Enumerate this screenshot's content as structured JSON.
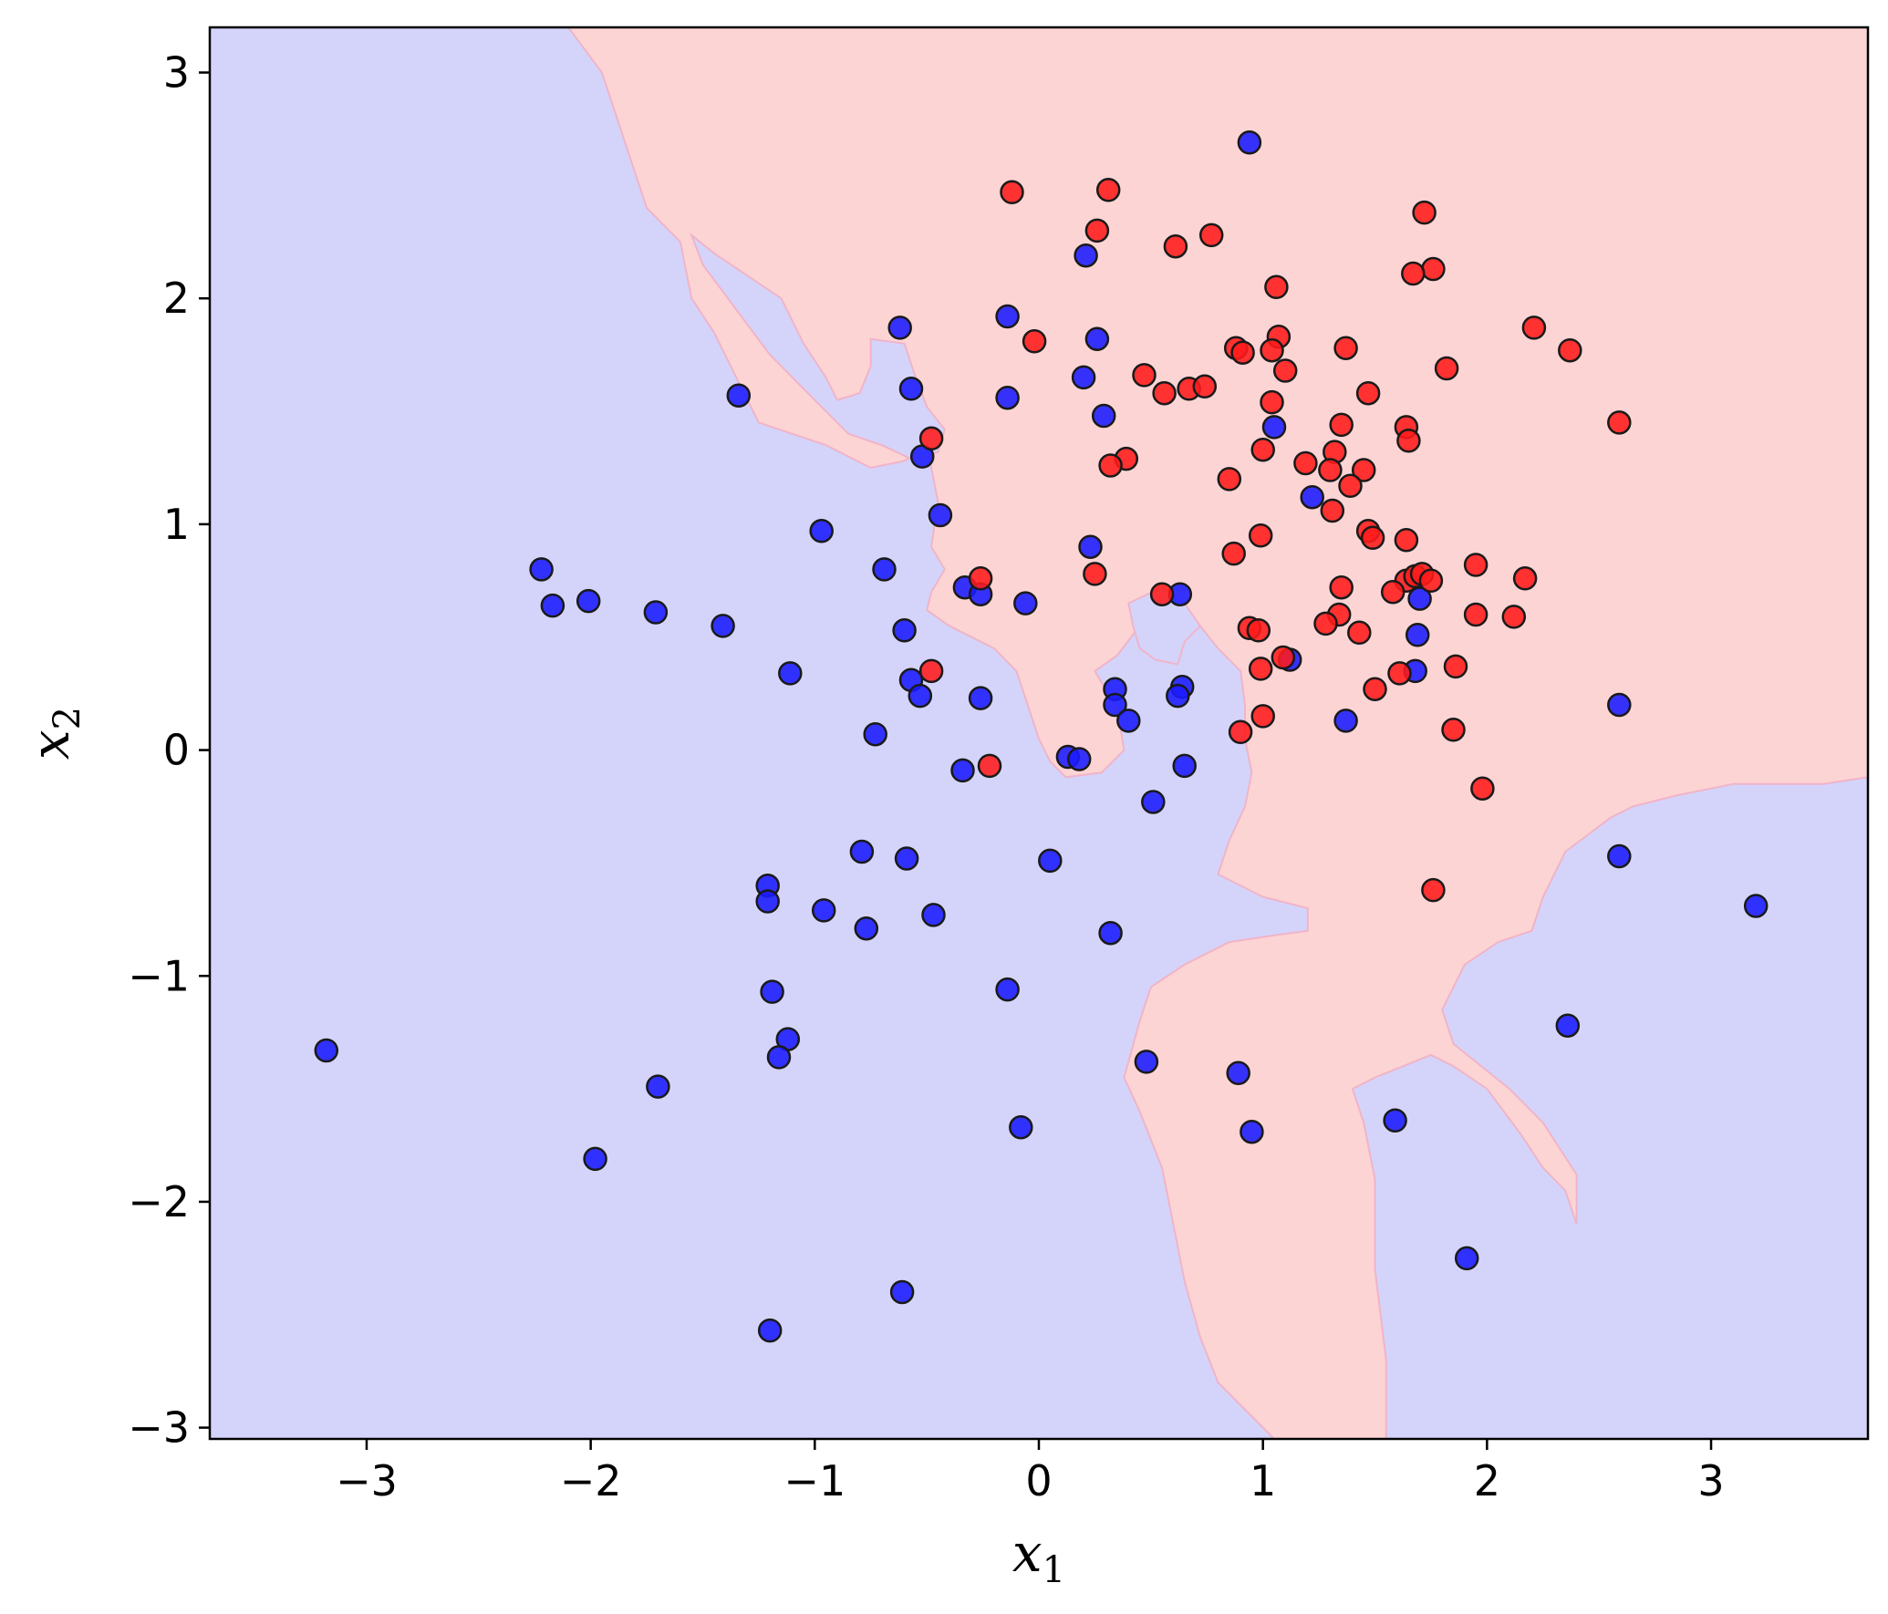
{
  "chart_data": {
    "type": "scatter",
    "title": "",
    "xlabel": {
      "main": "x",
      "sub": "1"
    },
    "ylabel": {
      "main": "x",
      "sub": "2"
    },
    "xlim": [
      -3.7,
      3.7
    ],
    "ylim": [
      -3.05,
      3.2
    ],
    "xticks": [
      -3,
      -2,
      -1,
      0,
      1,
      2,
      3
    ],
    "yticks": [
      -3,
      -2,
      -1,
      0,
      1,
      2,
      3
    ],
    "xtick_labels": [
      "−3",
      "−2",
      "−1",
      "0",
      "1",
      "2",
      "3"
    ],
    "ytick_labels": [
      "−3",
      "−2",
      "−1",
      "0",
      "1",
      "2",
      "3"
    ],
    "grid": false,
    "legend": "none",
    "colors": {
      "region_blue": "#d4d4fb",
      "region_red": "#fdd4d4",
      "region_edge": "#f0b4c8",
      "point_blue": "#1a1aff",
      "point_red": "#ff1a1a",
      "point_edge": "#1a1a1a"
    },
    "decision_regions": {
      "background": "blue",
      "red_regions": [
        [
          [
            -2.1,
            3.2
          ],
          [
            -1.95,
            3.0
          ],
          [
            -1.85,
            2.7
          ],
          [
            -1.75,
            2.4
          ],
          [
            -1.6,
            2.25
          ],
          [
            -1.55,
            2.0
          ],
          [
            -1.45,
            1.85
          ],
          [
            -1.35,
            1.65
          ],
          [
            -1.3,
            1.55
          ],
          [
            -1.25,
            1.45
          ],
          [
            -1.1,
            1.4
          ],
          [
            -0.95,
            1.35
          ],
          [
            -0.75,
            1.25
          ],
          [
            -0.6,
            1.28
          ],
          [
            -0.5,
            1.35
          ],
          [
            -0.45,
            1.1
          ],
          [
            -0.48,
            0.9
          ],
          [
            -0.42,
            0.8
          ],
          [
            -0.48,
            0.7
          ],
          [
            -0.5,
            0.62
          ],
          [
            -0.4,
            0.55
          ],
          [
            -0.3,
            0.5
          ],
          [
            -0.2,
            0.45
          ],
          [
            -0.1,
            0.35
          ],
          [
            -0.05,
            0.2
          ],
          [
            0.0,
            0.05
          ],
          [
            0.05,
            -0.05
          ],
          [
            0.12,
            -0.12
          ],
          [
            0.28,
            -0.1
          ],
          [
            0.38,
            0.0
          ],
          [
            0.35,
            0.18
          ],
          [
            0.25,
            0.35
          ],
          [
            0.35,
            0.42
          ],
          [
            0.45,
            0.55
          ],
          [
            0.55,
            0.68
          ],
          [
            0.65,
            0.62
          ],
          [
            0.72,
            0.55
          ],
          [
            0.8,
            0.45
          ],
          [
            0.9,
            0.35
          ],
          [
            0.92,
            0.2
          ],
          [
            0.92,
            0.05
          ],
          [
            0.95,
            -0.1
          ],
          [
            0.92,
            -0.25
          ],
          [
            0.85,
            -0.4
          ],
          [
            0.8,
            -0.55
          ],
          [
            1.0,
            -0.65
          ],
          [
            1.2,
            -0.7
          ],
          [
            1.2,
            -0.8
          ],
          [
            1.05,
            -0.82
          ],
          [
            0.85,
            -0.85
          ],
          [
            0.65,
            -0.95
          ],
          [
            0.5,
            -1.05
          ],
          [
            0.45,
            -1.2
          ],
          [
            0.38,
            -1.45
          ],
          [
            0.45,
            -1.6
          ],
          [
            0.55,
            -1.85
          ],
          [
            0.6,
            -2.1
          ],
          [
            0.65,
            -2.35
          ],
          [
            0.72,
            -2.6
          ],
          [
            0.8,
            -2.8
          ],
          [
            0.95,
            -2.95
          ],
          [
            1.05,
            -3.05
          ],
          [
            1.55,
            -3.05
          ],
          [
            1.55,
            -2.7
          ],
          [
            1.5,
            -2.3
          ],
          [
            1.5,
            -1.9
          ],
          [
            1.45,
            -1.65
          ],
          [
            1.4,
            -1.5
          ],
          [
            1.5,
            -1.45
          ],
          [
            1.75,
            -1.35
          ],
          [
            1.85,
            -1.4
          ],
          [
            2.0,
            -1.5
          ],
          [
            2.15,
            -1.7
          ],
          [
            2.25,
            -1.85
          ],
          [
            2.35,
            -1.95
          ],
          [
            2.4,
            -2.1
          ],
          [
            2.4,
            -1.88
          ],
          [
            2.25,
            -1.65
          ],
          [
            2.1,
            -1.5
          ],
          [
            1.85,
            -1.3
          ],
          [
            1.8,
            -1.15
          ],
          [
            1.9,
            -0.95
          ],
          [
            2.05,
            -0.85
          ],
          [
            2.2,
            -0.8
          ],
          [
            2.25,
            -0.65
          ],
          [
            2.35,
            -0.45
          ],
          [
            2.55,
            -0.3
          ],
          [
            2.65,
            -0.25
          ],
          [
            2.85,
            -0.2
          ],
          [
            3.1,
            -0.15
          ],
          [
            3.5,
            -0.15
          ],
          [
            3.7,
            -0.12
          ],
          [
            3.7,
            3.2
          ]
        ]
      ],
      "blue_regions": [
        [
          [
            -1.55,
            2.28
          ],
          [
            -1.45,
            2.2
          ],
          [
            -1.3,
            2.1
          ],
          [
            -1.15,
            2.0
          ],
          [
            -1.05,
            1.8
          ],
          [
            -0.95,
            1.65
          ],
          [
            -0.9,
            1.55
          ],
          [
            -0.8,
            1.58
          ],
          [
            -0.75,
            1.7
          ],
          [
            -0.75,
            1.82
          ],
          [
            -0.6,
            1.8
          ],
          [
            -0.55,
            1.65
          ],
          [
            -0.5,
            1.52
          ],
          [
            -0.42,
            1.42
          ],
          [
            -0.45,
            1.32
          ],
          [
            -0.55,
            1.28
          ],
          [
            -0.7,
            1.35
          ],
          [
            -0.85,
            1.4
          ],
          [
            -0.95,
            1.5
          ],
          [
            -1.05,
            1.6
          ],
          [
            -1.2,
            1.75
          ],
          [
            -1.35,
            1.95
          ],
          [
            -1.5,
            2.15
          ],
          [
            -1.55,
            2.28
          ]
        ],
        [
          [
            0.4,
            0.65
          ],
          [
            0.55,
            0.72
          ],
          [
            0.65,
            0.65
          ],
          [
            0.72,
            0.55
          ],
          [
            0.65,
            0.48
          ],
          [
            0.62,
            0.38
          ],
          [
            0.52,
            0.4
          ],
          [
            0.45,
            0.45
          ],
          [
            0.42,
            0.55
          ],
          [
            0.4,
            0.65
          ]
        ]
      ]
    },
    "series": [
      {
        "class": "blue",
        "points": [
          [
            0.94,
            2.69
          ],
          [
            0.21,
            2.19
          ],
          [
            -0.62,
            1.87
          ],
          [
            -0.14,
            1.92
          ],
          [
            0.26,
            1.82
          ],
          [
            0.2,
            1.65
          ],
          [
            -0.57,
            1.6
          ],
          [
            -0.14,
            1.56
          ],
          [
            -1.34,
            1.57
          ],
          [
            0.29,
            1.48
          ],
          [
            1.05,
            1.43
          ],
          [
            -0.52,
            1.3
          ],
          [
            1.22,
            1.12
          ],
          [
            -0.44,
            1.04
          ],
          [
            -0.97,
            0.97
          ],
          [
            0.23,
            0.9
          ],
          [
            -2.22,
            0.8
          ],
          [
            -0.69,
            0.8
          ],
          [
            -2.17,
            0.64
          ],
          [
            -2.01,
            0.66
          ],
          [
            -1.71,
            0.61
          ],
          [
            -1.41,
            0.55
          ],
          [
            -0.33,
            0.72
          ],
          [
            -0.26,
            0.69
          ],
          [
            -0.06,
            0.65
          ],
          [
            0.63,
            0.69
          ],
          [
            1.7,
            0.67
          ],
          [
            -0.6,
            0.53
          ],
          [
            1.69,
            0.51
          ],
          [
            1.12,
            0.4
          ],
          [
            -1.11,
            0.34
          ],
          [
            -0.57,
            0.31
          ],
          [
            -0.53,
            0.24
          ],
          [
            -0.26,
            0.23
          ],
          [
            0.34,
            0.27
          ],
          [
            0.64,
            0.28
          ],
          [
            0.62,
            0.24
          ],
          [
            0.34,
            0.2
          ],
          [
            0.4,
            0.13
          ],
          [
            1.68,
            0.35
          ],
          [
            1.37,
            0.13
          ],
          [
            2.59,
            0.2
          ],
          [
            -0.73,
            0.07
          ],
          [
            -0.34,
            -0.09
          ],
          [
            0.13,
            -0.03
          ],
          [
            0.18,
            -0.04
          ],
          [
            0.65,
            -0.07
          ],
          [
            0.51,
            -0.23
          ],
          [
            -0.79,
            -0.45
          ],
          [
            -0.59,
            -0.48
          ],
          [
            0.05,
            -0.49
          ],
          [
            2.59,
            -0.47
          ],
          [
            -1.21,
            -0.6
          ],
          [
            -1.21,
            -0.67
          ],
          [
            -0.96,
            -0.71
          ],
          [
            -0.47,
            -0.73
          ],
          [
            -0.77,
            -0.79
          ],
          [
            0.32,
            -0.81
          ],
          [
            3.2,
            -0.69
          ],
          [
            -1.19,
            -1.07
          ],
          [
            -0.14,
            -1.06
          ],
          [
            2.36,
            -1.22
          ],
          [
            -1.12,
            -1.28
          ],
          [
            -1.16,
            -1.36
          ],
          [
            -3.18,
            -1.33
          ],
          [
            -1.7,
            -1.49
          ],
          [
            0.48,
            -1.38
          ],
          [
            0.89,
            -1.43
          ],
          [
            1.59,
            -1.64
          ],
          [
            -0.08,
            -1.67
          ],
          [
            0.95,
            -1.69
          ],
          [
            -1.98,
            -1.81
          ],
          [
            1.91,
            -2.25
          ],
          [
            -0.61,
            -2.4
          ],
          [
            -1.2,
            -2.57
          ]
        ]
      },
      {
        "class": "red",
        "points": [
          [
            -0.12,
            2.47
          ],
          [
            0.31,
            2.48
          ],
          [
            1.72,
            2.38
          ],
          [
            0.26,
            2.3
          ],
          [
            0.77,
            2.28
          ],
          [
            0.61,
            2.23
          ],
          [
            1.76,
            2.13
          ],
          [
            1.67,
            2.11
          ],
          [
            1.06,
            2.05
          ],
          [
            2.21,
            1.87
          ],
          [
            -0.02,
            1.81
          ],
          [
            1.07,
            1.83
          ],
          [
            0.88,
            1.78
          ],
          [
            0.91,
            1.76
          ],
          [
            1.04,
            1.77
          ],
          [
            1.37,
            1.78
          ],
          [
            2.37,
            1.77
          ],
          [
            1.1,
            1.68
          ],
          [
            1.82,
            1.69
          ],
          [
            0.47,
            1.66
          ],
          [
            0.56,
            1.58
          ],
          [
            0.67,
            1.6
          ],
          [
            0.74,
            1.61
          ],
          [
            1.47,
            1.58
          ],
          [
            1.04,
            1.54
          ],
          [
            2.59,
            1.45
          ],
          [
            1.35,
            1.44
          ],
          [
            1.64,
            1.43
          ],
          [
            1.65,
            1.37
          ],
          [
            -0.48,
            1.38
          ],
          [
            1.0,
            1.33
          ],
          [
            1.32,
            1.32
          ],
          [
            0.39,
            1.29
          ],
          [
            0.32,
            1.26
          ],
          [
            1.19,
            1.27
          ],
          [
            1.3,
            1.24
          ],
          [
            1.45,
            1.24
          ],
          [
            0.85,
            1.2
          ],
          [
            1.39,
            1.17
          ],
          [
            1.31,
            1.06
          ],
          [
            1.47,
            0.97
          ],
          [
            1.49,
            0.94
          ],
          [
            1.64,
            0.93
          ],
          [
            0.99,
            0.95
          ],
          [
            0.87,
            0.87
          ],
          [
            0.25,
            0.78
          ],
          [
            -0.26,
            0.76
          ],
          [
            1.64,
            0.75
          ],
          [
            1.68,
            0.77
          ],
          [
            1.71,
            0.78
          ],
          [
            1.75,
            0.75
          ],
          [
            1.95,
            0.82
          ],
          [
            2.17,
            0.76
          ],
          [
            1.35,
            0.72
          ],
          [
            1.58,
            0.7
          ],
          [
            0.55,
            0.69
          ],
          [
            1.34,
            0.6
          ],
          [
            1.95,
            0.6
          ],
          [
            2.12,
            0.59
          ],
          [
            1.28,
            0.56
          ],
          [
            1.43,
            0.52
          ],
          [
            0.94,
            0.54
          ],
          [
            0.98,
            0.53
          ],
          [
            1.09,
            0.41
          ],
          [
            0.99,
            0.36
          ],
          [
            1.86,
            0.37
          ],
          [
            -0.48,
            0.35
          ],
          [
            1.61,
            0.34
          ],
          [
            1.5,
            0.27
          ],
          [
            1.0,
            0.15
          ],
          [
            0.9,
            0.08
          ],
          [
            1.85,
            0.09
          ],
          [
            -0.22,
            -0.07
          ],
          [
            1.98,
            -0.17
          ],
          [
            1.76,
            -0.62
          ]
        ]
      }
    ]
  }
}
